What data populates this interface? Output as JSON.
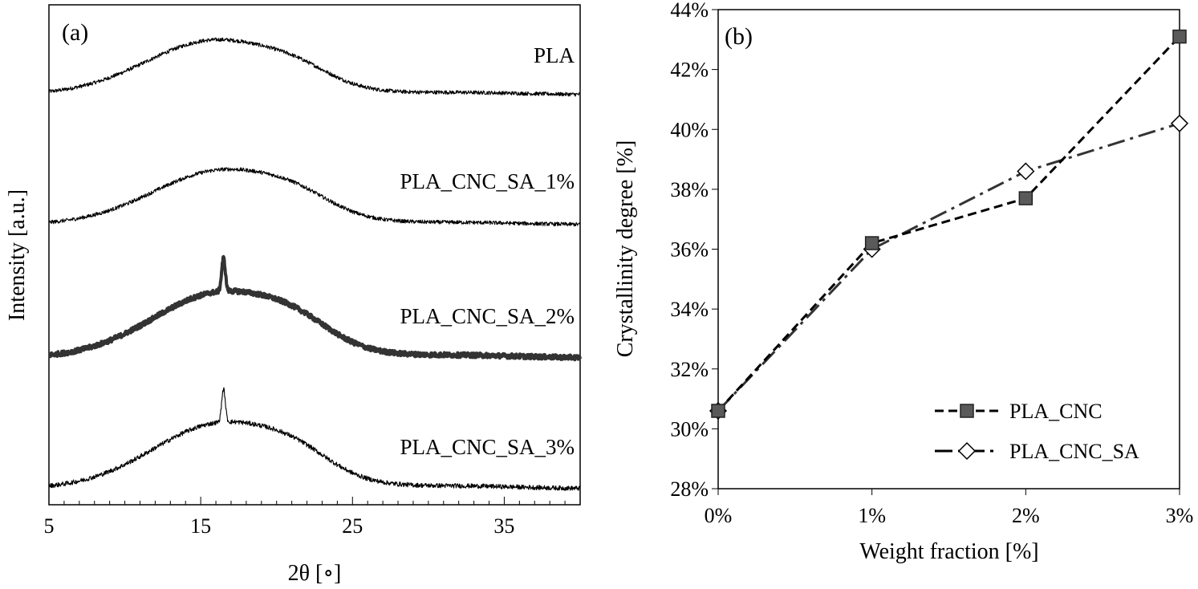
{
  "chart_data": [
    {
      "type": "line",
      "panel_label": "(a)",
      "title": "",
      "xlabel": "2θ [∘]",
      "ylabel": "Intensity [a.u.]",
      "xlim": [
        5,
        40
      ],
      "x_ticks": [
        5,
        15,
        25,
        35
      ],
      "x_tick_labels": [
        "5",
        "15",
        "25",
        "35"
      ],
      "y_ticks_shown": false,
      "grid": false,
      "series": [
        {
          "name": "PLA",
          "label": "PLA",
          "broad_peak_center": 16,
          "sharp_peak": null,
          "baseline_level": 1.0,
          "thick": false
        },
        {
          "name": "PLA_CNC_SA_1%",
          "label": "PLA_CNC_SA_1%",
          "broad_peak_center": 16.5,
          "sharp_peak": null,
          "baseline_level": 1.0,
          "thick": false
        },
        {
          "name": "PLA_CNC_SA_2%",
          "label": "PLA_CNC_SA_2%",
          "broad_peak_center": 16.5,
          "sharp_peak": 16.5,
          "baseline_level": 1.0,
          "thick": true
        },
        {
          "name": "PLA_CNC_SA_3%",
          "label": "PLA_CNC_SA_3%",
          "broad_peak_center": 16.5,
          "sharp_peak": 16.5,
          "baseline_level": 1.0,
          "thick": false
        }
      ]
    },
    {
      "type": "line",
      "panel_label": "(b)",
      "title": "",
      "xlabel": "Weight fraction [%]",
      "ylabel": "Crystallinity degree [%]",
      "categories": [
        "0%",
        "1%",
        "2%",
        "3%"
      ],
      "ylim": [
        28,
        44
      ],
      "y_ticks": [
        28,
        30,
        32,
        34,
        36,
        38,
        40,
        42,
        44
      ],
      "y_tick_labels": [
        "28%",
        "30%",
        "32%",
        "34%",
        "36%",
        "38%",
        "40%",
        "42%",
        "44%"
      ],
      "grid": false,
      "legend_position": "bottom-right",
      "series": [
        {
          "name": "PLA_CNC",
          "values": [
            30.6,
            36.2,
            37.7,
            43.1
          ],
          "marker": "filled-square",
          "line": "short-dash",
          "color": "#555555"
        },
        {
          "name": "PLA_CNC_SA",
          "values": [
            30.6,
            36.0,
            38.6,
            40.2
          ],
          "marker": "open-diamond",
          "line": "dash-dot",
          "color": "#555555"
        }
      ]
    }
  ]
}
